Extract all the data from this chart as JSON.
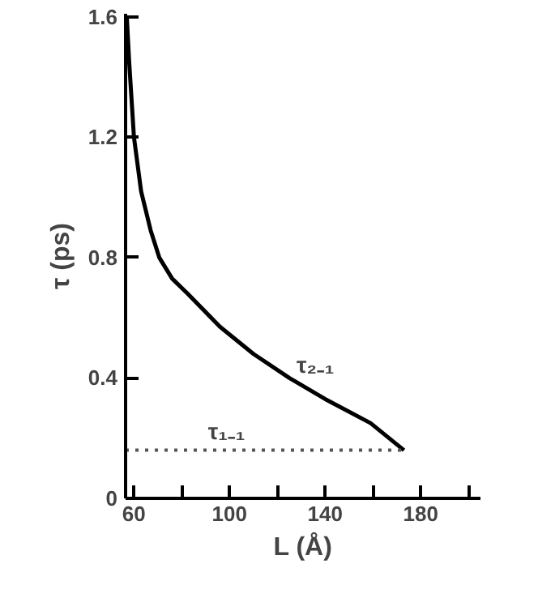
{
  "chart_data": {
    "type": "line",
    "xlabel": "L (Å)",
    "ylabel": "τ (ps)",
    "xlim": [
      56.5,
      205
    ],
    "ylim": [
      0,
      1.61
    ],
    "xticks": [
      60,
      {
        "value": 80,
        "label": null
      },
      100,
      {
        "value": 120,
        "label": null
      },
      140,
      {
        "value": 160,
        "label": null
      },
      180,
      {
        "value": 200,
        "label": null
      }
    ],
    "yticks": [
      0,
      0.4,
      0.8,
      1.2,
      1.6
    ],
    "series": [
      {
        "color": "#000000",
        "line_style": "solid",
        "x": [
          57,
          58,
          60,
          63,
          67,
          70.6,
          76,
          82.5,
          96,
          110,
          125,
          140,
          159,
          173
        ],
        "values": [
          1.6,
          1.45,
          1.2,
          1.02,
          0.89,
          0.8,
          0.73,
          0.68,
          0.57,
          0.48,
          0.4,
          0.33,
          0.25,
          0.16
        ]
      },
      {
        "color": "#555555",
        "line_style": "dotted",
        "x": [
          56.5,
          173
        ],
        "values": [
          0.16,
          0.16
        ]
      }
    ],
    "annotations": [
      {
        "text": "τ₂₋₁",
        "x": 128,
        "y": 0.38
      },
      {
        "text": "τ₁₋₁",
        "x": 91,
        "y": 0.16
      }
    ],
    "grid": false,
    "marker": "none"
  }
}
